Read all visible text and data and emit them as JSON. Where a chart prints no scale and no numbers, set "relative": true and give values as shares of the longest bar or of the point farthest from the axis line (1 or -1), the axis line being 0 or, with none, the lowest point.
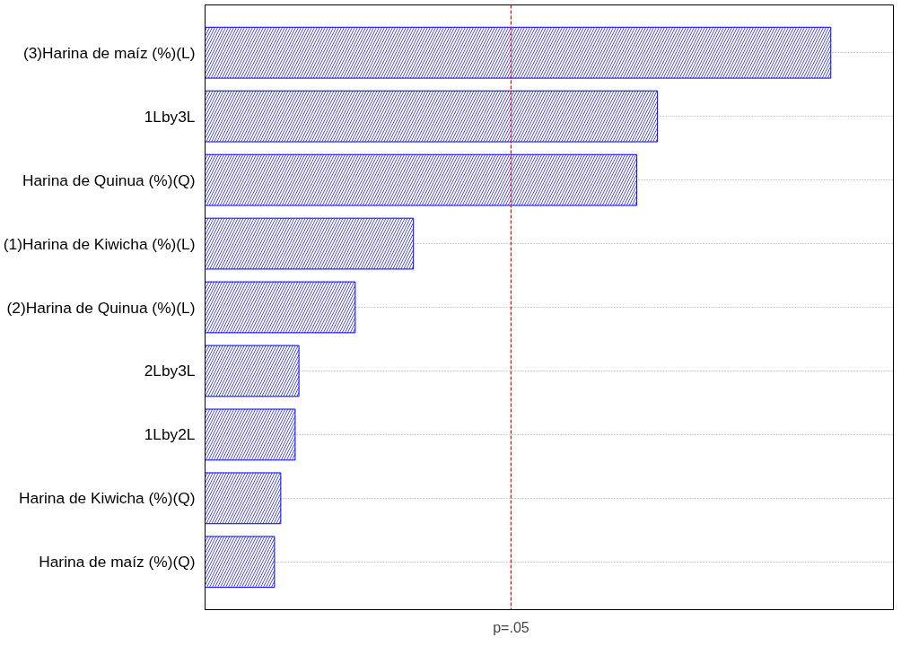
{
  "chart_data": {
    "type": "bar",
    "orientation": "horizontal",
    "relative": true,
    "categories": [
      "(3)Harina de maíz (%)(L)",
      "1Lby3L",
      "Harina de Quinua (%)(Q)",
      "(1)Harina de Kiwicha (%)(L)",
      "(2)Harina de Quinua (%)(L)",
      "2Lby3L",
      "1Lby2L",
      "Harina de Kiwicha (%)(Q)",
      "Harina de maíz (%)(Q)"
    ],
    "values": [
      1,
      0.723,
      0.69,
      0.333,
      0.24,
      0.15,
      0.144,
      0.121,
      0.111
    ],
    "color": "#0000ff",
    "ref_lines": [
      {
        "axis": "x",
        "value": 0.489,
        "label": "p=.05",
        "color": "#ff0000",
        "line_style": "dashed"
      }
    ],
    "grid": "y"
  }
}
